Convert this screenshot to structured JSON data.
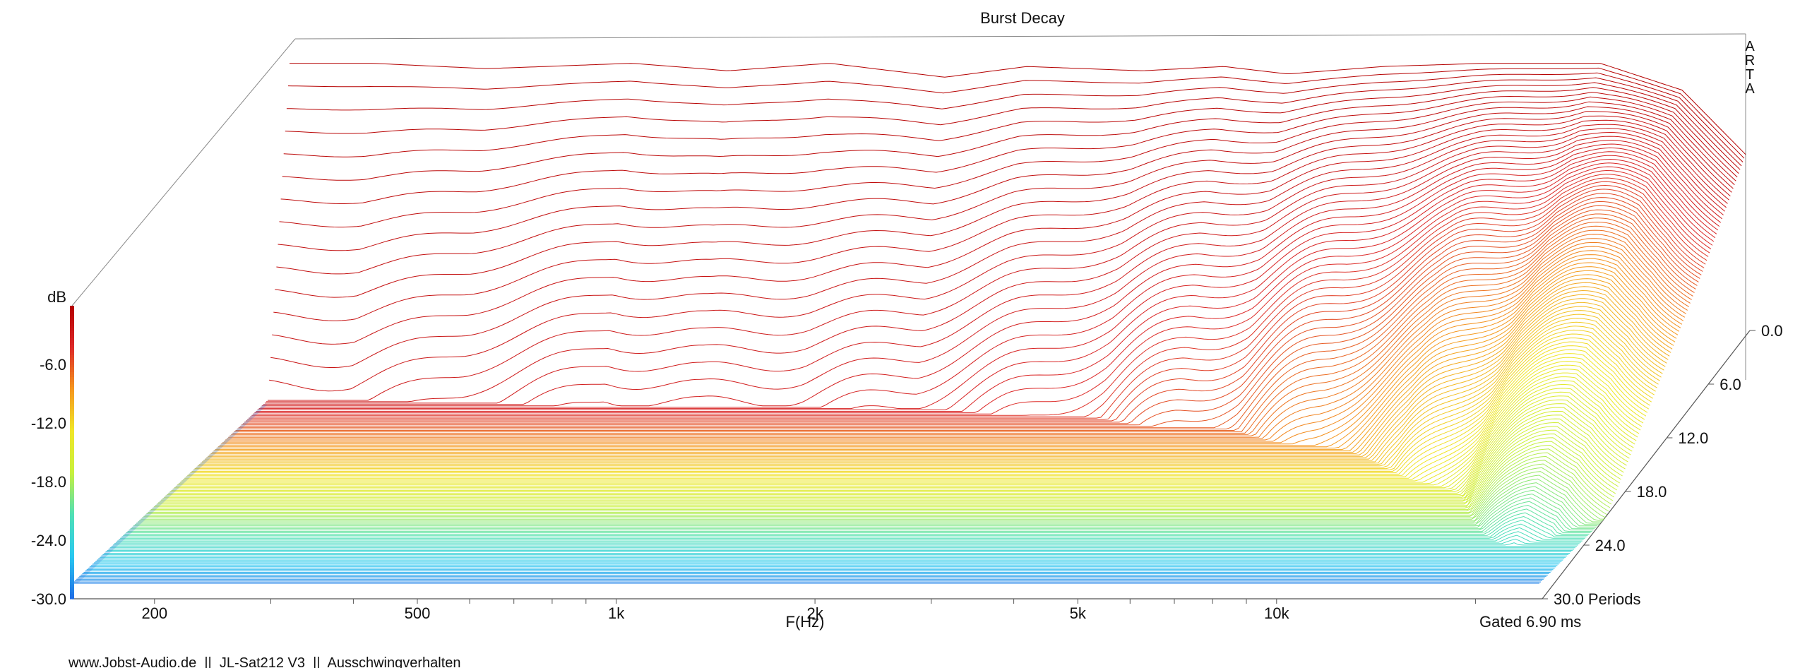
{
  "chart_data": {
    "type": "waterfall",
    "title": "Burst Decay",
    "watermark": [
      "A",
      "R",
      "T",
      "A"
    ],
    "x_axis": {
      "label": "F(Hz)",
      "scale": "log",
      "range": [
        150,
        25000
      ],
      "ticks": [
        {
          "value": 200,
          "label": "200"
        },
        {
          "value": 500,
          "label": "500"
        },
        {
          "value": 1000,
          "label": "1k"
        },
        {
          "value": 2000,
          "label": "2k"
        },
        {
          "value": 5000,
          "label": "5k"
        },
        {
          "value": 10000,
          "label": "10k"
        }
      ]
    },
    "z_axis": {
      "unit_label": "dB",
      "range": [
        -30,
        0
      ],
      "ticks": [
        {
          "value": -6,
          "label": "-6.0"
        },
        {
          "value": -12,
          "label": "-12.0"
        },
        {
          "value": -18,
          "label": "-18.0"
        },
        {
          "value": -24,
          "label": "-24.0"
        },
        {
          "value": -30,
          "label": "-30.0"
        }
      ]
    },
    "depth_axis": {
      "unit": "Periods",
      "range": [
        0,
        30
      ],
      "ticks": [
        {
          "value": 0,
          "label": "0.0"
        },
        {
          "value": 6,
          "label": "6.0"
        },
        {
          "value": 12,
          "label": "12.0"
        },
        {
          "value": 18,
          "label": "18.0"
        },
        {
          "value": 24,
          "label": "24.0"
        },
        {
          "value": 30,
          "label": "30.0 Periods"
        }
      ]
    },
    "colormap": [
      "#1e6ee6",
      "#28c8f0",
      "#50e0b4",
      "#c8f03c",
      "#f0e628",
      "#f5961e",
      "#dc2828",
      "#b40000"
    ],
    "floor_color": "#2b78e4",
    "gate_note": "Gated 6.90 ms",
    "slice_count": 150,
    "initial_response_db": [
      {
        "f": 200,
        "db": -0.5
      },
      {
        "f": 300,
        "db": -1.0
      },
      {
        "f": 500,
        "db": -0.5
      },
      {
        "f": 700,
        "db": -1.2
      },
      {
        "f": 1000,
        "db": -0.5
      },
      {
        "f": 1500,
        "db": -1.8
      },
      {
        "f": 2000,
        "db": -0.8
      },
      {
        "f": 3000,
        "db": -1.2
      },
      {
        "f": 4000,
        "db": -0.8
      },
      {
        "f": 5000,
        "db": -1.5
      },
      {
        "f": 7000,
        "db": -0.8
      },
      {
        "f": 10000,
        "db": -0.5
      },
      {
        "f": 15000,
        "db": -0.5
      },
      {
        "f": 20000,
        "db": -3.0
      },
      {
        "f": 25000,
        "db": -9.0
      }
    ],
    "decay_time_periods": [
      {
        "f": 200,
        "p": 3
      },
      {
        "f": 500,
        "p": 4
      },
      {
        "f": 1000,
        "p": 4
      },
      {
        "f": 2000,
        "p": 5
      },
      {
        "f": 3000,
        "p": 6
      },
      {
        "f": 5000,
        "p": 8
      },
      {
        "f": 7000,
        "p": 10
      },
      {
        "f": 10000,
        "p": 13
      },
      {
        "f": 14000,
        "p": 18
      },
      {
        "f": 18000,
        "p": 24
      },
      {
        "f": 22000,
        "p": 30
      }
    ]
  },
  "footer": {
    "credits": "www.Jobst-Audio.de  ||  JL-Sat212 V3  ||  Ausschwingverhalten"
  }
}
